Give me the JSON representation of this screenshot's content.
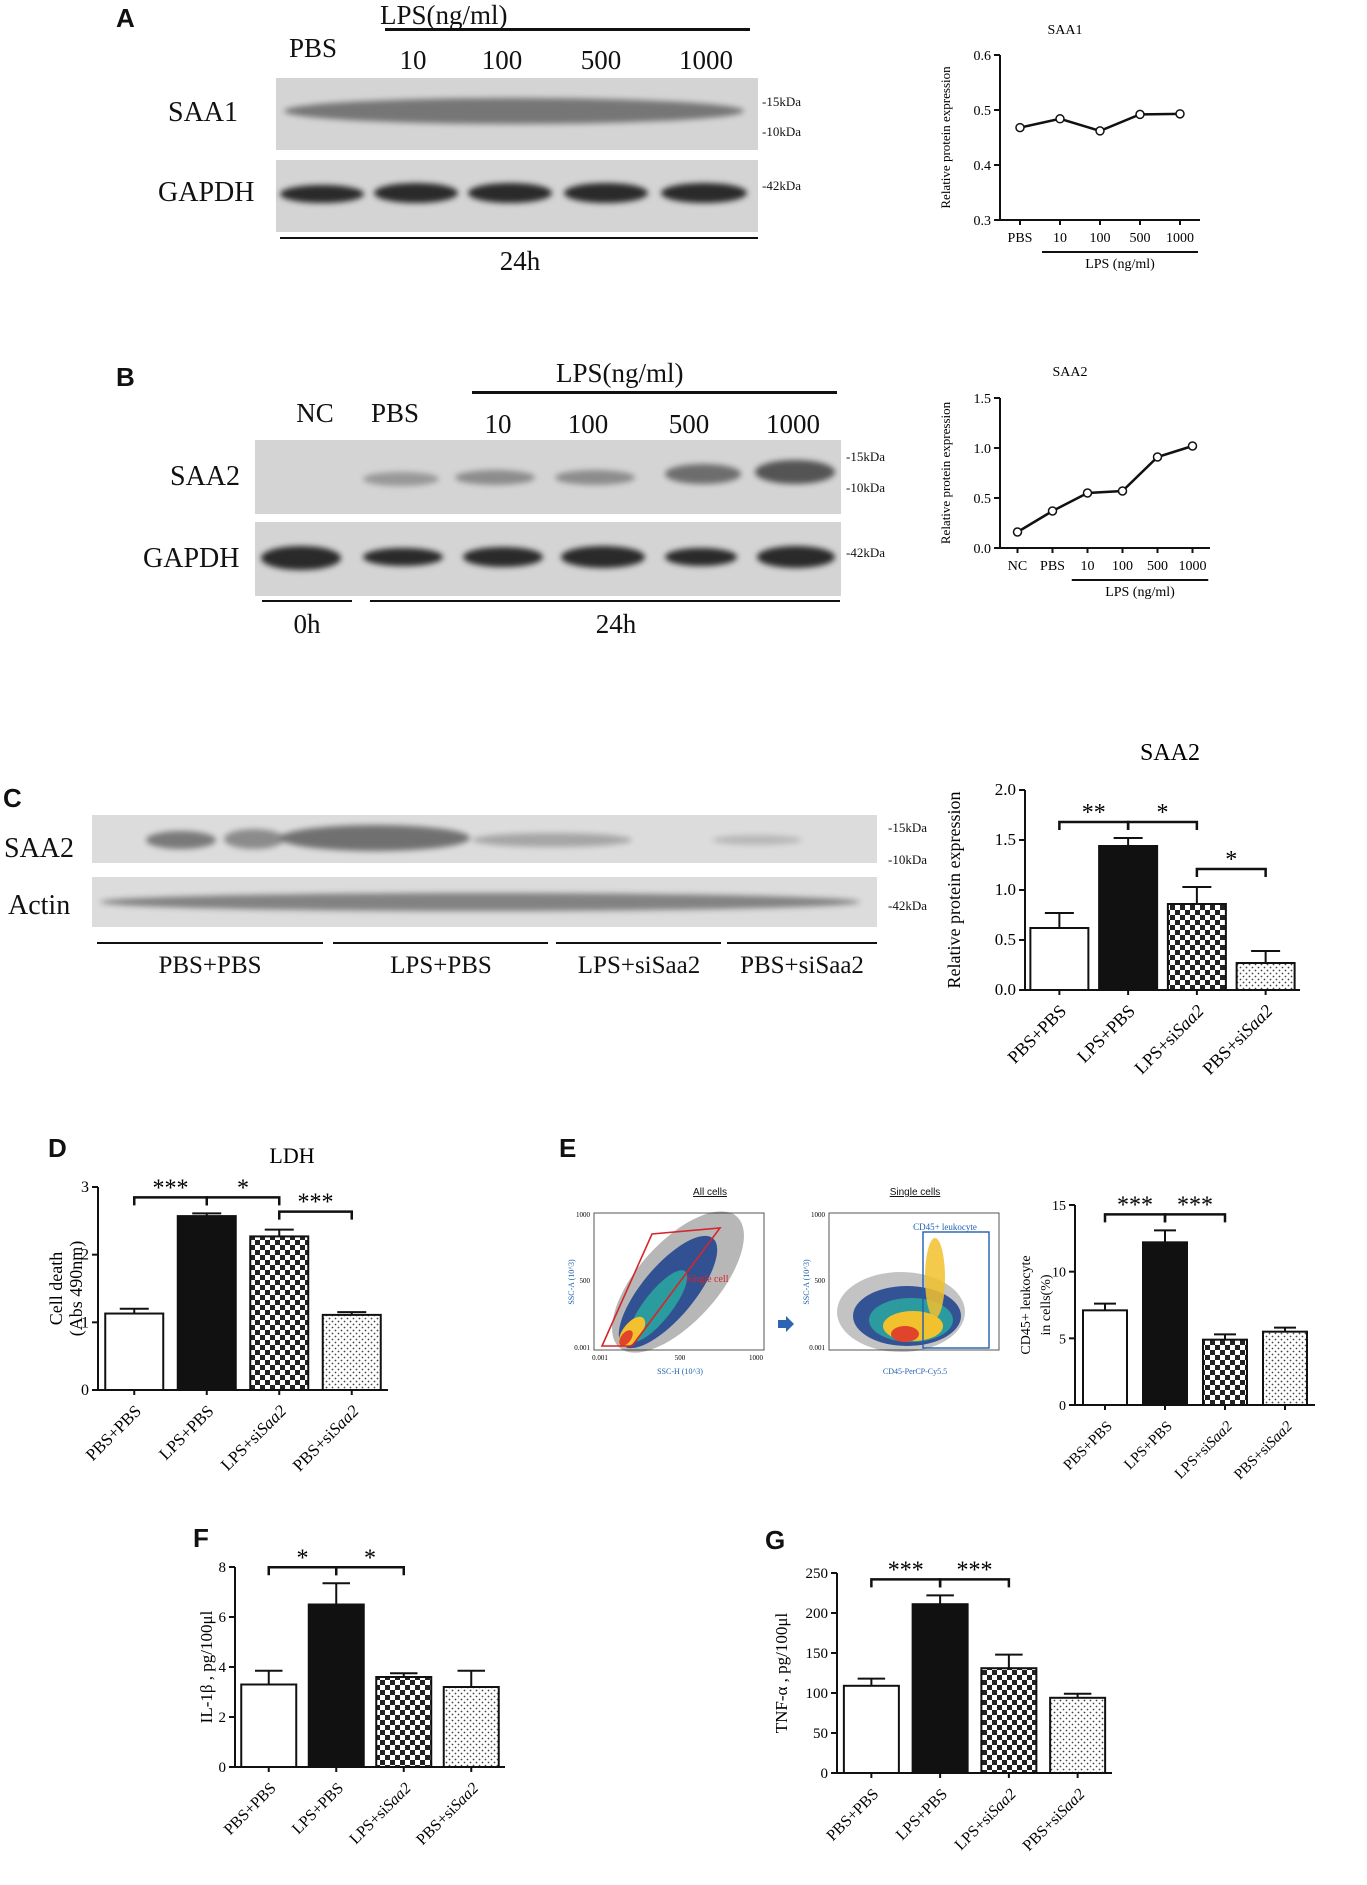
{
  "panelA": {
    "letter": "A",
    "lps_header": "LPS(ng/ml)",
    "lanes": [
      "PBS",
      "10",
      "100",
      "500",
      "1000"
    ],
    "rows": [
      "SAA1",
      "GAPDH"
    ],
    "kda": [
      "-15kDa",
      "-10kDa",
      "-42kDa"
    ],
    "time": "24h"
  },
  "panelB": {
    "letter": "B",
    "lps_header": "LPS(ng/ml)",
    "lanes": [
      "NC",
      "PBS",
      "10",
      "100",
      "500",
      "1000"
    ],
    "rows": [
      "SAA2",
      "GAPDH"
    ],
    "kda": [
      "-15kDa",
      "-10kDa",
      "-42kDa"
    ],
    "time0": "0h",
    "time24": "24h"
  },
  "panelC": {
    "letter": "C",
    "rows": [
      "SAA2",
      "Actin"
    ],
    "kda": [
      "-15kDa",
      "-10kDa",
      "-42kDa"
    ],
    "groups": [
      "PBS+PBS",
      "LPS+PBS",
      "LPS+siSaa2",
      "PBS+siSaa2"
    ]
  },
  "panelD": {
    "letter": "D"
  },
  "panelE": {
    "letter": "E",
    "flow1_title": "All cells",
    "flow1_gate": "Single cell",
    "flow1_xlabel": "SSC-H (10^3)",
    "flow1_ylabel": "SSC-A (10^3)",
    "flow1_xticks": [
      "0.001",
      "500",
      "1000"
    ],
    "flow1_yticks": [
      "1000",
      "500",
      "0.001"
    ],
    "flow2_title": "Single cells",
    "flow2_gate": "CD45+ leukocyte",
    "flow2_xlabel": "CD45-PerCP-Cy5.5",
    "flow2_ylabel": "SSC-A (10^3)",
    "flow2_yticks": [
      "1000",
      "500",
      "0.001"
    ]
  },
  "panelF": {
    "letter": "F"
  },
  "panelG": {
    "letter": "G"
  },
  "colors": {
    "ink": "#111111",
    "band": "#2a2a2a",
    "blot_bg": "#d4d4d4",
    "gate_red": "#d6262b",
    "gate_blue": "#1f5fb0",
    "arrow_blue": "#2e64b5"
  },
  "chart_data": [
    {
      "id": "A",
      "type": "line",
      "title": "SAA1",
      "ylabel": "Relative protein expression",
      "categories": [
        "PBS",
        "10",
        "100",
        "500",
        "1000"
      ],
      "values": [
        0.468,
        0.484,
        0.462,
        0.492,
        0.493
      ],
      "ylim": [
        0.3,
        0.6
      ],
      "yticks": [
        "0.3",
        "0.4",
        "0.5",
        "0.6"
      ],
      "group_label": "LPS (ng/ml)",
      "group_from": 1,
      "group_to": 4
    },
    {
      "id": "B",
      "type": "line",
      "title": "SAA2",
      "ylabel": "Relative protein expression",
      "categories": [
        "NC",
        "PBS",
        "10",
        "100",
        "500",
        "1000"
      ],
      "values": [
        0.16,
        0.37,
        0.55,
        0.57,
        0.91,
        1.02
      ],
      "ylim": [
        0,
        1.5
      ],
      "yticks": [
        "0.0",
        "0.5",
        "1.0",
        "1.5"
      ],
      "group_label": "LPS (ng/ml)",
      "group_from": 2,
      "group_to": 5
    },
    {
      "id": "C",
      "type": "bar",
      "title": "SAA2",
      "ylabel": "Relative protein expression",
      "categories": [
        "PBS+PBS",
        "LPS+PBS",
        "LPS+siSaa2",
        "PBS+siSaa2"
      ],
      "values": [
        0.62,
        1.44,
        0.86,
        0.27
      ],
      "errors": [
        0.15,
        0.08,
        0.17,
        0.12
      ],
      "ylim": [
        0,
        2.0
      ],
      "yticks": [
        "0.0",
        "0.5",
        "1.0",
        "1.5",
        "2.0"
      ],
      "sig": [
        {
          "from": 0,
          "to": 1,
          "label": "**",
          "level": 0
        },
        {
          "from": 1,
          "to": 2,
          "label": "*",
          "level": 0
        },
        {
          "from": 2,
          "to": 3,
          "label": "*",
          "level": 1
        }
      ]
    },
    {
      "id": "D",
      "type": "bar",
      "title": "LDH",
      "ylabel": "Cell death",
      "ylabel2": "(Abs 490nm)",
      "categories": [
        "PBS+PBS",
        "LPS+PBS",
        "LPS+siSaa2",
        "PBS+siSaa2"
      ],
      "values": [
        1.13,
        2.57,
        2.27,
        1.11
      ],
      "errors": [
        0.07,
        0.04,
        0.1,
        0.04
      ],
      "ylim": [
        0,
        3
      ],
      "yticks": [
        "0",
        "1",
        "2",
        "3"
      ],
      "sig": [
        {
          "from": 0,
          "to": 1,
          "label": "***",
          "level": 0
        },
        {
          "from": 1,
          "to": 2,
          "label": "*",
          "level": 0
        },
        {
          "from": 2,
          "to": 3,
          "label": "***",
          "level": 1
        }
      ]
    },
    {
      "id": "E",
      "type": "bar",
      "title": "",
      "ylabel": "CD45+ leukocyte",
      "ylabel2": "in cells(%)",
      "categories": [
        "PBS+PBS",
        "LPS+PBS",
        "LPS+siSaa2",
        "PBS+siSaa2"
      ],
      "values": [
        7.1,
        12.2,
        4.9,
        5.5
      ],
      "errors": [
        0.5,
        0.9,
        0.4,
        0.3
      ],
      "ylim": [
        0,
        15
      ],
      "yticks": [
        "0",
        "5",
        "10",
        "15"
      ],
      "sig": [
        {
          "from": 0,
          "to": 1,
          "label": "***",
          "level": 0
        },
        {
          "from": 1,
          "to": 2,
          "label": "***",
          "level": 0
        }
      ]
    },
    {
      "id": "F",
      "type": "bar",
      "title": "",
      "ylabel": "IL-1β , pg/100μl",
      "categories": [
        "PBS+PBS",
        "LPS+PBS",
        "LPS+siSaa2",
        "PBS+siSaa2"
      ],
      "values": [
        3.3,
        6.5,
        3.6,
        3.2
      ],
      "errors": [
        0.55,
        0.85,
        0.15,
        0.65
      ],
      "ylim": [
        0,
        8
      ],
      "yticks": [
        "0",
        "2",
        "4",
        "6",
        "8"
      ],
      "sig": [
        {
          "from": 0,
          "to": 1,
          "label": "*",
          "level": 0
        },
        {
          "from": 1,
          "to": 2,
          "label": "*",
          "level": 0
        }
      ]
    },
    {
      "id": "G",
      "type": "bar",
      "title": "",
      "ylabel": "TNF-α , pg/100μl",
      "categories": [
        "PBS+PBS",
        "LPS+PBS",
        "LPS+siSaa2",
        "PBS+siSaa2"
      ],
      "values": [
        109,
        211,
        131,
        94
      ],
      "errors": [
        9,
        11,
        17,
        5
      ],
      "ylim": [
        0,
        250
      ],
      "yticks": [
        "0",
        "50",
        "100",
        "150",
        "200",
        "250"
      ],
      "sig": [
        {
          "from": 0,
          "to": 1,
          "label": "***",
          "level": 0
        },
        {
          "from": 1,
          "to": 2,
          "label": "***",
          "level": 0
        }
      ]
    }
  ]
}
